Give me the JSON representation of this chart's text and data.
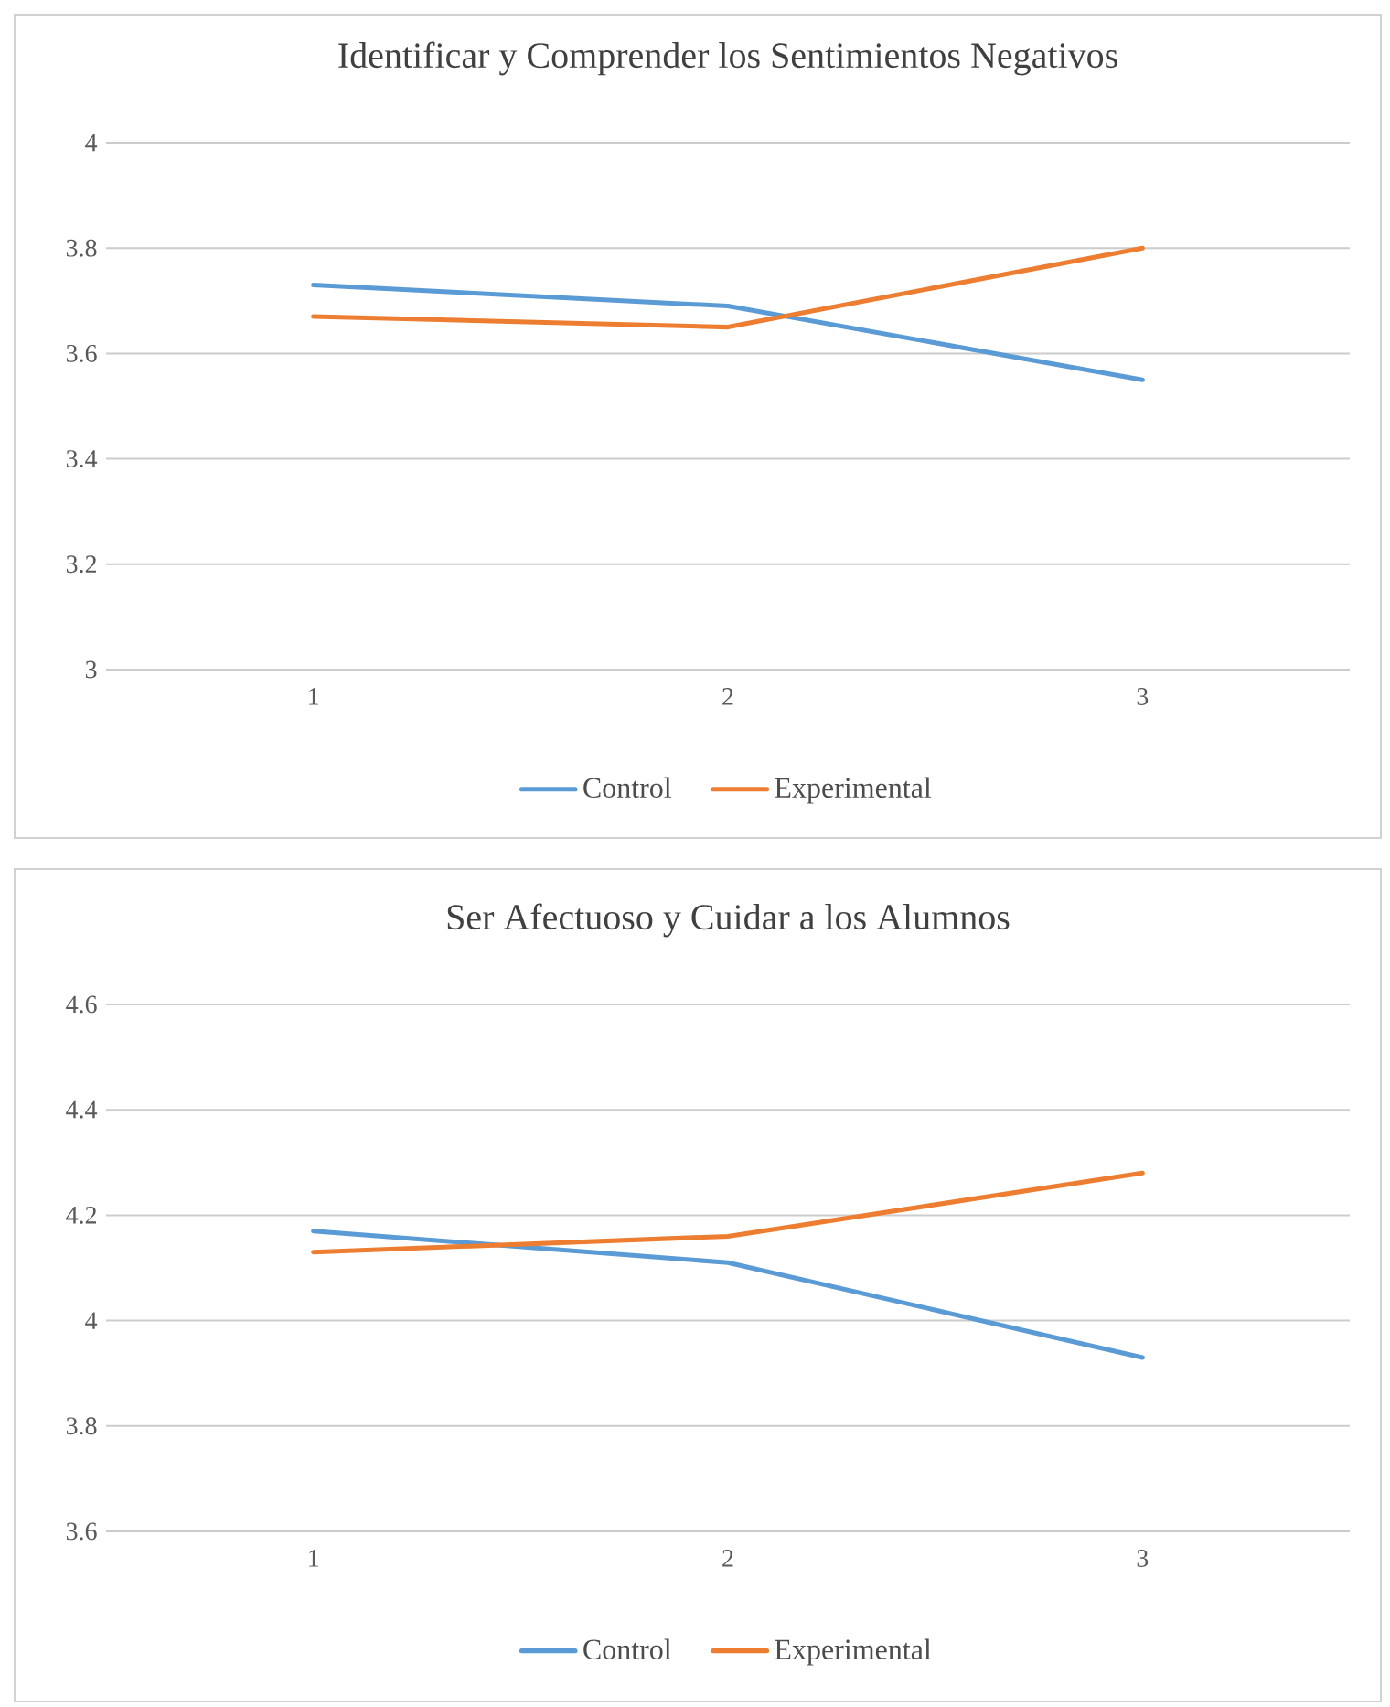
{
  "chart_data": [
    {
      "type": "line",
      "title": "Identificar  y Comprender  los Sentimientos  Negativos",
      "categories": [
        "1",
        "2",
        "3"
      ],
      "series": [
        {
          "name": "Control",
          "color": "#5b9bd5",
          "values": [
            3.73,
            3.69,
            3.55
          ]
        },
        {
          "name": "Experimental",
          "color": "#ed7d31",
          "values": [
            3.67,
            3.65,
            3.8
          ]
        }
      ],
      "ylim": [
        3,
        4
      ],
      "yticks": [
        3,
        3.2,
        3.4,
        3.6,
        3.8,
        4
      ],
      "grid": "y",
      "legend": "bottom"
    },
    {
      "type": "line",
      "title": "Ser Afectuoso  y Cuidar  a los Alumnos",
      "categories": [
        "1",
        "2",
        "3"
      ],
      "series": [
        {
          "name": "Control",
          "color": "#5b9bd5",
          "values": [
            4.17,
            4.11,
            3.93
          ]
        },
        {
          "name": "Experimental",
          "color": "#ed7d31",
          "values": [
            4.13,
            4.16,
            4.28
          ]
        }
      ],
      "ylim": [
        3.6,
        4.6
      ],
      "yticks": [
        3.6,
        3.8,
        4,
        4.2,
        4.4,
        4.6
      ],
      "grid": "y",
      "legend": "bottom"
    }
  ]
}
